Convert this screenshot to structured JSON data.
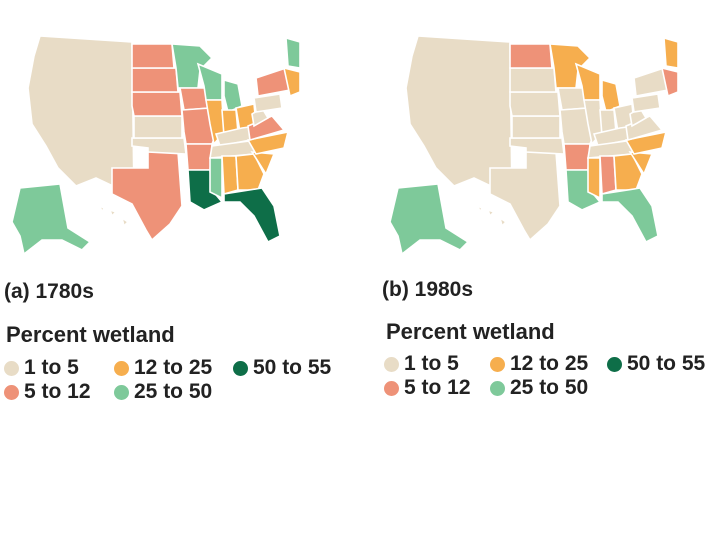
{
  "colors": {
    "c1_5": "#e8dcc6",
    "c5_12": "#ee9278",
    "c12_25": "#f6ae4e",
    "c25_50": "#7ec99a",
    "c50_55": "#0e6e48"
  },
  "panels": [
    {
      "caption": "(a) 1780s",
      "legend": {
        "title": "Percent wetland",
        "items": [
          {
            "label": "1 to 5",
            "color": "#e8dcc6"
          },
          {
            "label": "5 to 12",
            "color": "#ee9278"
          },
          {
            "label": "12 to 25",
            "color": "#f6ae4e"
          },
          {
            "label": "25 to 50",
            "color": "#7ec99a"
          },
          {
            "label": "50 to 55",
            "color": "#0e6e48"
          }
        ]
      }
    },
    {
      "caption": "(b) 1980s",
      "legend": {
        "title": "Percent wetland",
        "items": [
          {
            "label": "1 to 5",
            "color": "#e8dcc6"
          },
          {
            "label": "5 to 12",
            "color": "#ee9278"
          },
          {
            "label": "12 to 25",
            "color": "#f6ae4e"
          },
          {
            "label": "25 to 50",
            "color": "#7ec99a"
          },
          {
            "label": "50 to 55",
            "color": "#0e6e48"
          }
        ]
      }
    }
  ],
  "map_data": {
    "1780s": {
      "texas": "5 to 12",
      "oklahoma": "1 to 5",
      "kansas": "1 to 5",
      "nebraska": "5 to 12",
      "south-dakota": "5 to 12",
      "north-dakota": "5 to 12",
      "minnesota": "25 to 50",
      "iowa": "5 to 12",
      "missouri": "5 to 12",
      "arkansas": "5 to 12",
      "louisiana": "50 to 55",
      "wisconsin": "25 to 50",
      "illinois": "12 to 25",
      "michigan": "25 to 50",
      "indiana": "12 to 25",
      "ohio": "12 to 25",
      "kentucky": "1 to 5",
      "tennessee": "1 to 5",
      "mississippi": "25 to 50",
      "alabama": "12 to 25",
      "georgia": "12 to 25",
      "florida": "50 to 55",
      "south-carolina": "12 to 25",
      "north-carolina": "12 to 25",
      "virginia": "5 to 12",
      "west-virginia": "1 to 5",
      "pennsylvania": "1 to 5",
      "new-york": "5 to 12",
      "maine": "25 to 50",
      "new-england": "12 to 25",
      "alaska": "25 to 50",
      "hawaii": "1 to 5"
    },
    "1980s": {
      "texas": "1 to 5",
      "oklahoma": "1 to 5",
      "kansas": "1 to 5",
      "nebraska": "1 to 5",
      "south-dakota": "1 to 5",
      "north-dakota": "5 to 12",
      "minnesota": "12 to 25",
      "iowa": "1 to 5",
      "missouri": "1 to 5",
      "arkansas": "5 to 12",
      "louisiana": "25 to 50",
      "wisconsin": "12 to 25",
      "illinois": "1 to 5",
      "michigan": "12 to 25",
      "indiana": "1 to 5",
      "ohio": "1 to 5",
      "kentucky": "1 to 5",
      "tennessee": "1 to 5",
      "mississippi": "12 to 25",
      "alabama": "5 to 12",
      "georgia": "12 to 25",
      "florida": "25 to 50",
      "south-carolina": "12 to 25",
      "north-carolina": "12 to 25",
      "virginia": "1 to 5",
      "west-virginia": "1 to 5",
      "pennsylvania": "1 to 5",
      "new-york": "1 to 5",
      "maine": "12 to 25",
      "new-england": "5 to 12",
      "alaska": "25 to 50",
      "hawaii": "1 to 5"
    }
  }
}
